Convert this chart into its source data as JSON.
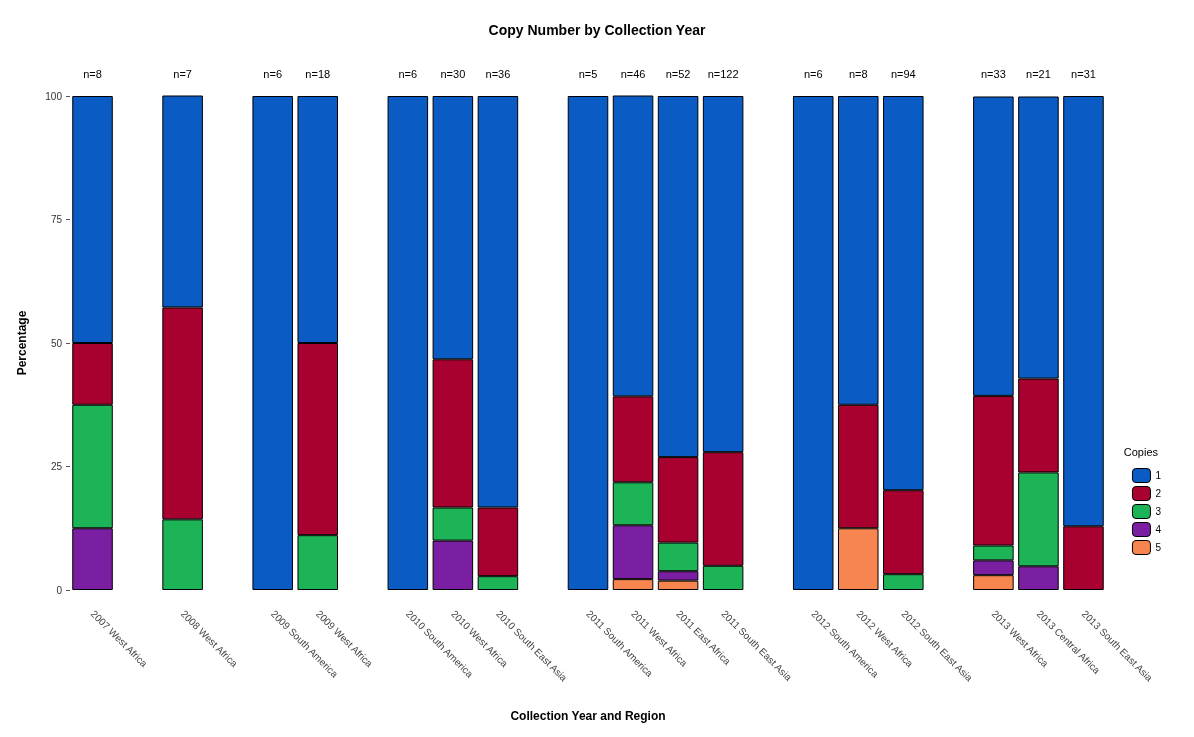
{
  "chart_data": {
    "type": "bar",
    "title": "Copy Number by Collection Year",
    "xlabel": "Collection Year and Region",
    "ylabel": "Percentage",
    "legend_title": "Copies",
    "categories": [
      "2007 West Africa",
      null,
      "2008 West Africa",
      null,
      "2009 South America",
      "2009 West Africa",
      null,
      "2010 South America",
      "2010 West Africa",
      "2010 South East Asia",
      null,
      "2011 South America",
      "2011 West Africa",
      "2011 East Africa",
      "2011 South East Asia",
      null,
      "2012 South America",
      "2012 West Africa",
      "2012 South East Asia",
      null,
      "2013 West Africa",
      "2013 Central Africa",
      "2013 South East Asia"
    ],
    "stacked": true,
    "series": [
      {
        "name": "5",
        "color": "#f7854f",
        "values": [
          null,
          null,
          null,
          null,
          null,
          null,
          null,
          null,
          null,
          null,
          null,
          null,
          2.2,
          1.9,
          null,
          null,
          null,
          12.5,
          null,
          null,
          3.0,
          null,
          null
        ]
      },
      {
        "name": "4",
        "color": "#7b1fa2",
        "values": [
          12.5,
          null,
          null,
          null,
          null,
          null,
          null,
          null,
          10,
          null,
          null,
          null,
          10.9,
          1.9,
          null,
          null,
          null,
          null,
          null,
          null,
          3.0,
          4.8,
          null
        ]
      },
      {
        "name": "3",
        "color": "#1db457",
        "values": [
          25,
          null,
          14.3,
          null,
          null,
          11.1,
          null,
          null,
          6.7,
          2.8,
          null,
          null,
          8.7,
          5.8,
          4.9,
          null,
          null,
          null,
          3.2,
          null,
          3.0,
          19.0,
          null
        ]
      },
      {
        "name": "2",
        "color": "#a8002f",
        "values": [
          12.5,
          null,
          42.9,
          null,
          null,
          38.9,
          null,
          null,
          30,
          13.9,
          null,
          null,
          17.4,
          17.3,
          23.0,
          null,
          null,
          25,
          17.0,
          null,
          30.3,
          19.0,
          12.9
        ]
      },
      {
        "name": "1",
        "color": "#0a5bc4",
        "values": [
          50,
          null,
          42.9,
          null,
          100,
          50,
          null,
          100,
          53.3,
          83.3,
          null,
          100,
          60.9,
          73.1,
          72.1,
          null,
          100,
          62.5,
          79.8,
          null,
          60.6,
          57.1,
          87.1
        ]
      }
    ],
    "ylim": [
      0,
      100
    ],
    "yticks": [
      0,
      25,
      50,
      75,
      100
    ],
    "grid": false,
    "legend": "right",
    "annotations": [
      "n=8",
      "n=7",
      "n=6",
      "n=18",
      "n=6",
      "n=30",
      "n=36",
      "n=5",
      "n=46",
      "n=52",
      "n=122",
      "n=6",
      "n=8",
      "n=94",
      "n=33",
      "n=21",
      "n=31"
    ]
  }
}
